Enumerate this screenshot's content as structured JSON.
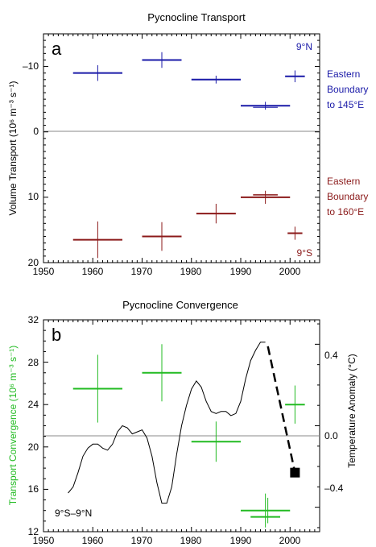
{
  "colors": {
    "north": "#1a1aa8",
    "south": "#8b1a1a",
    "green": "#22bb22",
    "black": "#000000",
    "zero_line": "#888888"
  },
  "chart_data": [
    {
      "type": "scatter",
      "title": "Pycnocline Transport",
      "panel_label": "a",
      "ylabel": "Volume Transport (10⁶ m⁻³ s⁻¹)",
      "xlim": [
        1950,
        2006
      ],
      "ylim": [
        -15,
        20
      ],
      "y_inverted_upper_half": true,
      "x_ticks": [
        "1950",
        "1960",
        "1970",
        "1980",
        "1990",
        "2000"
      ],
      "y_ticks": [
        "–10",
        "0",
        "10",
        "20"
      ],
      "corner_labels": {
        "north": "9°N",
        "south": "9°S"
      },
      "series": [
        {
          "group": "north",
          "label_lines": [
            "Eastern",
            "Boundary",
            "to 145°E"
          ],
          "points": [
            {
              "x": 1961,
              "y": -9,
              "x_err": 5,
              "y_err": 1.2
            },
            {
              "x": 1974,
              "y": -11,
              "x_err": 4,
              "y_err": 1.2
            },
            {
              "x": 1985,
              "y": -8,
              "x_err": 5,
              "y_err": 0.6
            },
            {
              "x": 1995,
              "y": -4,
              "x_err": 5,
              "y_err": 0.6
            },
            {
              "x": 2001,
              "y": -8.5,
              "x_err": 2,
              "y_err": 0.9
            }
          ]
        },
        {
          "group": "south",
          "label_lines": [
            "Eastern",
            "Boundary",
            "to 160°E"
          ],
          "points": [
            {
              "x": 1961,
              "y": 16.5,
              "x_err": 5,
              "y_err": 2.8
            },
            {
              "x": 1974,
              "y": 16,
              "x_err": 4,
              "y_err": 2.2
            },
            {
              "x": 1985,
              "y": 12.5,
              "x_err": 4,
              "y_err": 1.5
            },
            {
              "x": 1995,
              "y": 10,
              "x_err": 5,
              "y_err": 1
            },
            {
              "x": 2001,
              "y": 15.5,
              "x_err": 1.5,
              "y_err": 1
            }
          ]
        }
      ]
    },
    {
      "type": "scatter",
      "title": "Pycnocline Convergence",
      "panel_label": "b",
      "ylabel": "Transport Convergence (10⁶ m⁻³ s⁻¹)",
      "y2label": "Temperature Anomaly (°C)",
      "region_label": "9°S–9°N",
      "xlim": [
        1950,
        2006
      ],
      "ylim": [
        12,
        32
      ],
      "y2lim": [
        -0.52,
        0.52
      ],
      "x_ticks": [
        "1950",
        "1960",
        "1970",
        "1980",
        "1990",
        "2000"
      ],
      "y_ticks": [
        "12",
        "16",
        "20",
        "24",
        "28",
        "32"
      ],
      "y2_ticks": [
        "–0.4",
        "0.0",
        "0.4"
      ],
      "convergence": [
        {
          "x": 1961,
          "y": 25.5,
          "x_err": 5,
          "y_err": 3.2
        },
        {
          "x": 1974,
          "y": 27,
          "x_err": 4,
          "y_err": 2.7
        },
        {
          "x": 1985,
          "y": 20.5,
          "x_err": 5,
          "y_err": 1.9
        },
        {
          "x": 1995,
          "y": 14,
          "x_err": 5,
          "y_err": 1.6
        },
        {
          "x": 2001,
          "y": 24,
          "x_err": 2,
          "y_err": 1.8
        }
      ],
      "temperature_anomaly": {
        "x": [
          1955,
          1956,
          1957,
          1958,
          1959,
          1960,
          1961,
          1962,
          1963,
          1964,
          1965,
          1966,
          1967,
          1968,
          1969,
          1970,
          1971,
          1972,
          1973,
          1974,
          1975,
          1976,
          1977,
          1978,
          1979,
          1980,
          1981,
          1982,
          1983,
          1984,
          1985,
          1986,
          1987,
          1988,
          1989,
          1990,
          1991,
          1992,
          1993,
          1994,
          1995
        ],
        "y": [
          -0.33,
          -0.3,
          -0.23,
          -0.15,
          -0.11,
          -0.09,
          -0.09,
          -0.11,
          -0.12,
          -0.09,
          -0.03,
          0.0,
          -0.01,
          -0.04,
          -0.03,
          -0.02,
          -0.06,
          -0.15,
          -0.28,
          -0.38,
          -0.38,
          -0.3,
          -0.14,
          0.0,
          0.1,
          0.18,
          0.22,
          0.19,
          0.12,
          0.07,
          0.06,
          0.07,
          0.07,
          0.05,
          0.06,
          0.12,
          0.23,
          0.32,
          0.37,
          0.41,
          0.41
        ]
      },
      "trend_line": {
        "x": [
          1995.5,
          2001
        ],
        "y": [
          0.39,
          -0.23
        ]
      },
      "end_marker": {
        "x": 2001,
        "y": -0.23
      }
    }
  ]
}
